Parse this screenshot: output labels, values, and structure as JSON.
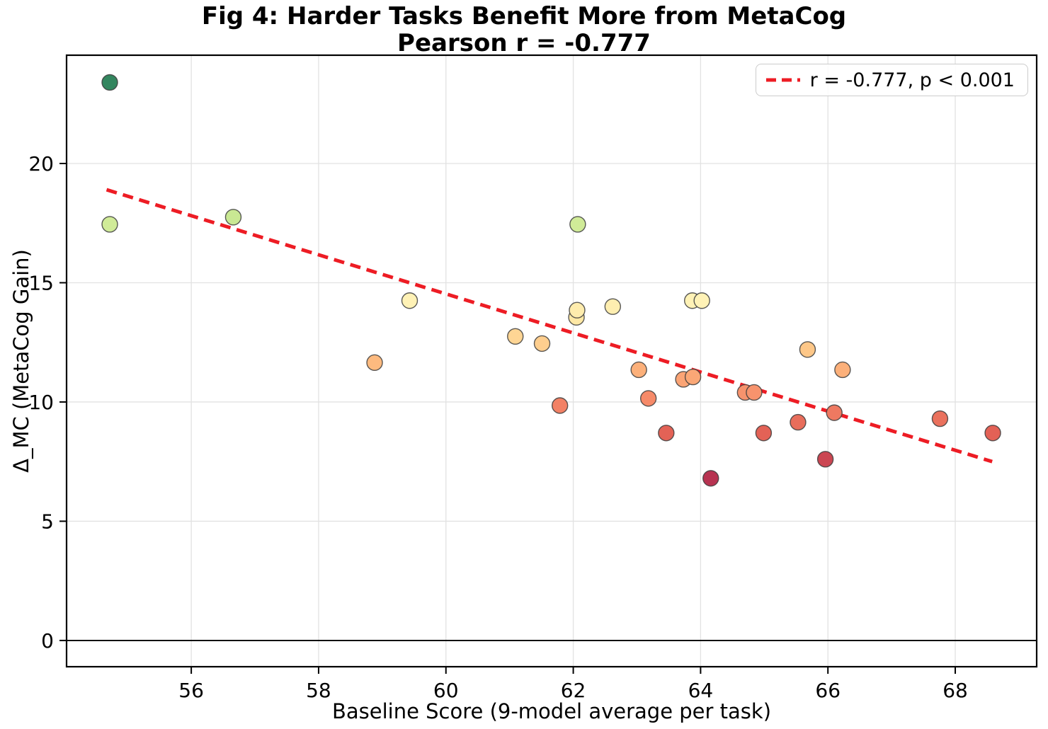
{
  "chart_data": {
    "type": "scatter",
    "title": "Fig 4: Harder Tasks Benefit More from MetaCog",
    "subtitle": "Pearson r = -0.777",
    "xlabel": "Baseline Score (9-model average per task)",
    "ylabel": "Δ_MC (MetaCog Gain)",
    "xlim": [
      54.03,
      69.29
    ],
    "ylim": [
      -1.13,
      24.57
    ],
    "xticks": [
      56,
      58,
      60,
      62,
      64,
      66,
      68
    ],
    "yticks": [
      0,
      5,
      10,
      15,
      20
    ],
    "grid": true,
    "grid_color": "#e2e2e2",
    "zero_line_y": 0,
    "spine_color": "#000000",
    "point_radius": 11,
    "point_edge_color": "#3d3d3d",
    "colormap_note": "RdYlGn colors mapped to MetaCog gain (high=green, low=red)",
    "points": [
      {
        "x": 54.72,
        "y": 23.4,
        "c": "#33865f"
      },
      {
        "x": 54.72,
        "y": 17.45,
        "c": "#d0eb98"
      },
      {
        "x": 56.66,
        "y": 17.75,
        "c": "#c9e893"
      },
      {
        "x": 58.88,
        "y": 11.65,
        "c": "#fdba7f"
      },
      {
        "x": 59.43,
        "y": 14.25,
        "c": "#fff2b6"
      },
      {
        "x": 61.09,
        "y": 12.75,
        "c": "#fed594"
      },
      {
        "x": 61.51,
        "y": 12.45,
        "c": "#fece8e"
      },
      {
        "x": 61.79,
        "y": 9.85,
        "c": "#f28165"
      },
      {
        "x": 62.05,
        "y": 13.55,
        "c": "#fee8a5"
      },
      {
        "x": 62.06,
        "y": 13.85,
        "c": "#feecad"
      },
      {
        "x": 62.07,
        "y": 17.45,
        "c": "#d0eb98"
      },
      {
        "x": 62.62,
        "y": 14.0,
        "c": "#feeeb0"
      },
      {
        "x": 63.03,
        "y": 11.35,
        "c": "#fcb07a"
      },
      {
        "x": 63.18,
        "y": 10.15,
        "c": "#f68a69"
      },
      {
        "x": 63.46,
        "y": 8.7,
        "c": "#e36256"
      },
      {
        "x": 63.73,
        "y": 10.95,
        "c": "#faa475"
      },
      {
        "x": 63.87,
        "y": 14.25,
        "c": "#fff2b6"
      },
      {
        "x": 63.88,
        "y": 11.05,
        "c": "#faa776"
      },
      {
        "x": 64.02,
        "y": 14.25,
        "c": "#fff2b6"
      },
      {
        "x": 64.16,
        "y": 6.8,
        "c": "#b73351"
      },
      {
        "x": 64.7,
        "y": 10.4,
        "c": "#f7936d"
      },
      {
        "x": 64.84,
        "y": 10.4,
        "c": "#f7936d"
      },
      {
        "x": 64.99,
        "y": 8.7,
        "c": "#e36256"
      },
      {
        "x": 65.53,
        "y": 9.15,
        "c": "#e86d5b"
      },
      {
        "x": 65.68,
        "y": 12.2,
        "c": "#fdc788"
      },
      {
        "x": 65.96,
        "y": 7.6,
        "c": "#cb4652"
      },
      {
        "x": 66.1,
        "y": 9.55,
        "c": "#ee7961"
      },
      {
        "x": 66.23,
        "y": 11.35,
        "c": "#fcb07a"
      },
      {
        "x": 67.76,
        "y": 9.3,
        "c": "#ea715d"
      },
      {
        "x": 68.59,
        "y": 8.7,
        "c": "#e36156"
      }
    ],
    "trendline": {
      "x1": 54.67,
      "y1": 18.9,
      "x2": 68.58,
      "y2": 7.5,
      "color": "#ed1c24",
      "dash": [
        15,
        9
      ],
      "width": 5
    },
    "legend": {
      "label": "r = -0.777, p < 0.001",
      "position": "upper-right",
      "swatch_color": "#ed1c24"
    }
  }
}
